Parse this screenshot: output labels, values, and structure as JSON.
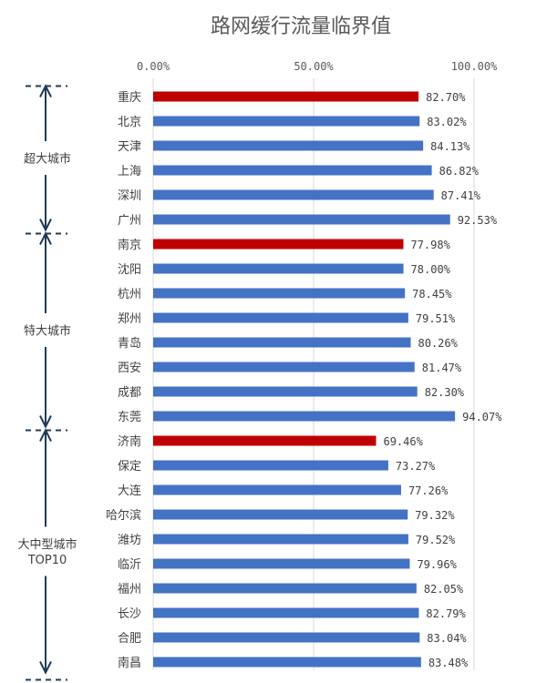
{
  "chart_data": {
    "type": "bar",
    "orientation": "horizontal",
    "title": "路网缓行流量临界值",
    "xlim": [
      0,
      100
    ],
    "x_ticks": [
      "0.00%",
      "50.00%",
      "100.00%"
    ],
    "grid": true,
    "categories": [
      "重庆",
      "北京",
      "天津",
      "上海",
      "深圳",
      "广州",
      "南京",
      "沈阳",
      "杭州",
      "郑州",
      "青岛",
      "西安",
      "成都",
      "东莞",
      "济南",
      "保定",
      "大连",
      "哈尔滨",
      "潍坊",
      "临沂",
      "福州",
      "长沙",
      "合肥",
      "南昌"
    ],
    "values": [
      82.7,
      83.02,
      84.13,
      86.82,
      87.41,
      92.53,
      77.98,
      78.0,
      78.45,
      79.51,
      80.26,
      81.47,
      82.3,
      94.07,
      69.46,
      73.27,
      77.26,
      79.32,
      79.52,
      79.96,
      82.05,
      82.79,
      83.04,
      83.48
    ],
    "value_labels": [
      "82.70%",
      "83.02%",
      "84.13%",
      "86.82%",
      "87.41%",
      "92.53%",
      "77.98%",
      "78.00%",
      "78.45%",
      "79.51%",
      "80.26%",
      "81.47%",
      "82.30%",
      "94.07%",
      "69.46%",
      "73.27%",
      "77.26%",
      "79.32%",
      "79.52%",
      "79.96%",
      "82.05%",
      "82.79%",
      "83.04%",
      "83.48%"
    ],
    "highlighted": [
      "重庆",
      "南京",
      "济南"
    ],
    "groups": [
      {
        "label_lines": [
          "超大城市"
        ],
        "start": 0,
        "end": 5
      },
      {
        "label_lines": [
          "特大城市"
        ],
        "start": 6,
        "end": 13
      },
      {
        "label_lines": [
          "大中型城市",
          "TOP10"
        ],
        "start": 14,
        "end": 23
      }
    ],
    "colors": {
      "bar": "#4472c4",
      "highlight": "#c00000",
      "bracket": "#1f3b57",
      "grid": "#d9d9d9"
    }
  }
}
